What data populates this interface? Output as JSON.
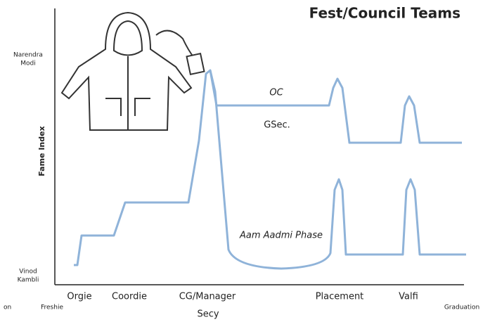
{
  "title": "Fest/Council Teams",
  "y_axis": {
    "label": "Fame Index",
    "top": [
      "Narendra",
      "Modi"
    ],
    "bottom": [
      "Vinod",
      "Kambli"
    ]
  },
  "x_axis": {
    "start": "Freshie",
    "end": "Graduation",
    "cut_label": "on",
    "stages": [
      "Orgie",
      "Coordie",
      "CG/Manager",
      "Placement",
      "Valfi"
    ],
    "below": "Secy"
  },
  "annotations": {
    "upper": "OC",
    "middle": "GSec.",
    "lower": "Aam Aadmi Phase"
  }
}
